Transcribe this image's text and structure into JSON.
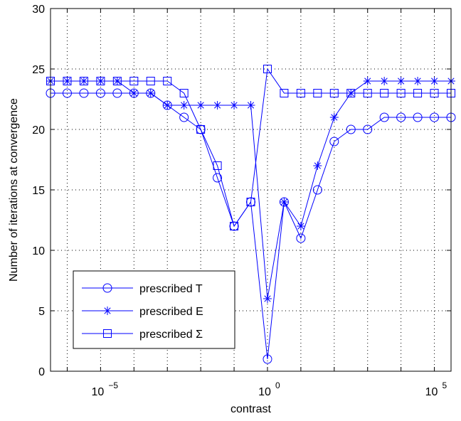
{
  "chart_data": {
    "type": "line",
    "title": "",
    "xlabel": "contrast",
    "ylabel": "Number of iterations at convergence",
    "xscale": "log",
    "xlim": [
      3.16e-07,
      316000.0
    ],
    "ylim": [
      0,
      30
    ],
    "grid": true,
    "legend_position": "bottom-left",
    "x_tick_labels": [
      {
        "value": 1e-05,
        "base": "10",
        "exp": "−5"
      },
      {
        "value": 1,
        "base": "10",
        "exp": "0"
      },
      {
        "value": 100000.0,
        "base": "10",
        "exp": "5"
      }
    ],
    "y_tick_labels": [
      "0",
      "5",
      "10",
      "15",
      "20",
      "25",
      "30"
    ],
    "y_ticks": [
      0,
      5,
      10,
      15,
      20,
      25,
      30
    ],
    "x": [
      3.16e-07,
      1e-06,
      3.16e-06,
      1e-05,
      3.16e-05,
      0.0001,
      0.000316,
      0.001,
      0.00316,
      0.01,
      0.0316,
      0.1,
      0.316,
      1,
      3.16,
      10,
      31.6,
      100,
      316,
      1000,
      3160,
      10000.0,
      31600.0,
      100000.0,
      316000.0
    ],
    "series": [
      {
        "name": "prescribed T",
        "marker": "circle",
        "color": "#0000ff",
        "values": [
          23,
          23,
          23,
          23,
          23,
          23,
          23,
          22,
          21,
          20,
          16,
          12,
          14,
          1,
          14,
          11,
          15,
          19,
          20,
          20,
          21,
          21,
          21,
          21,
          21
        ]
      },
      {
        "name": "prescribed E",
        "marker": "star",
        "color": "#0000ff",
        "values": [
          24,
          24,
          24,
          24,
          24,
          23,
          23,
          22,
          22,
          22,
          22,
          22,
          22,
          6,
          14,
          12,
          17,
          21,
          23,
          24,
          24,
          24,
          24,
          24,
          24
        ]
      },
      {
        "name": "prescribed Σ",
        "marker": "square",
        "color": "#0000ff",
        "values": [
          24,
          24,
          24,
          24,
          24,
          24,
          24,
          24,
          23,
          20,
          17,
          12,
          14,
          25,
          23,
          23,
          23,
          23,
          23,
          23,
          23,
          23,
          23,
          23,
          23
        ]
      }
    ]
  }
}
